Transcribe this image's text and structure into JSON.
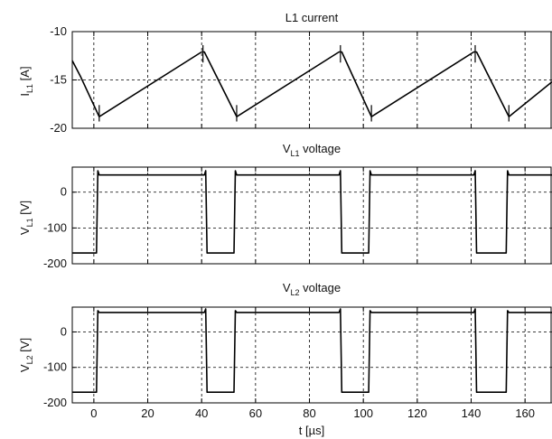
{
  "chart_data": [
    {
      "type": "line",
      "title": "L1 current",
      "ylabel_main": "I",
      "ylabel_sub": "L1",
      "ylabel_unit": " [A]",
      "xlim": [
        -8,
        170
      ],
      "ylim": [
        -20,
        -10
      ],
      "yticks": [
        -10,
        -15,
        -20
      ],
      "x": [
        -8,
        -5,
        2,
        40,
        41,
        53,
        91,
        92,
        103,
        141,
        142,
        154,
        170
      ],
      "values": [
        -13,
        -14.6,
        -18.8,
        -12.1,
        -12.1,
        -18.8,
        -12.1,
        -12.1,
        -18.8,
        -12.1,
        -12.1,
        -18.8,
        -15.2
      ],
      "spikes": [
        {
          "x": 2,
          "y0": -17.6,
          "y1": -19.3
        },
        {
          "x": 40.5,
          "y0": -11.4,
          "y1": -13.2
        },
        {
          "x": 53,
          "y0": -17.6,
          "y1": -19.3
        },
        {
          "x": 91.5,
          "y0": -11.4,
          "y1": -13.2
        },
        {
          "x": 103,
          "y0": -17.6,
          "y1": -19.3
        },
        {
          "x": 141.5,
          "y0": -11.4,
          "y1": -13.2
        },
        {
          "x": 154,
          "y0": -17.6,
          "y1": -19.3
        }
      ],
      "grid": true
    },
    {
      "type": "line",
      "title_main": "V",
      "title_sub": "L1",
      "title_rest": " voltage",
      "ylabel_main": "V",
      "ylabel_sub": "L1",
      "ylabel_unit": " [V]",
      "xlim": [
        -8,
        170
      ],
      "ylim": [
        -200,
        70
      ],
      "yticks": [
        0,
        -100,
        -200
      ],
      "x": [
        -8,
        1,
        1.5,
        2,
        41,
        41.5,
        42,
        52,
        52.5,
        53,
        91,
        91.5,
        92,
        102,
        102.5,
        103,
        141,
        141.5,
        142,
        153,
        153.5,
        154,
        170
      ],
      "values": [
        -170,
        -170,
        60,
        48,
        48,
        60,
        -170,
        -170,
        60,
        48,
        48,
        60,
        -170,
        -170,
        60,
        48,
        48,
        60,
        -170,
        -170,
        60,
        48,
        48
      ],
      "grid": true
    },
    {
      "type": "line",
      "title_main": "V",
      "title_sub": "L2",
      "title_rest": " voltage",
      "ylabel_main": "V",
      "ylabel_sub": "L2",
      "ylabel_unit": " [V]",
      "xlabel": "t [µs]",
      "xlim": [
        -8,
        170
      ],
      "ylim": [
        -200,
        70
      ],
      "yticks": [
        0,
        -100,
        -200
      ],
      "xticks": [
        0,
        20,
        40,
        60,
        80,
        100,
        120,
        140,
        160
      ],
      "x": [
        -8,
        1,
        1.5,
        2,
        41,
        41.5,
        42,
        52,
        52.5,
        53,
        91,
        91.5,
        92,
        102,
        102.5,
        103,
        141,
        141.5,
        142,
        153,
        153.5,
        154,
        170
      ],
      "values": [
        -170,
        -170,
        60,
        55,
        55,
        65,
        -170,
        -170,
        60,
        55,
        55,
        65,
        -170,
        -170,
        60,
        55,
        55,
        65,
        -170,
        -170,
        60,
        55,
        55
      ],
      "grid": true
    }
  ]
}
